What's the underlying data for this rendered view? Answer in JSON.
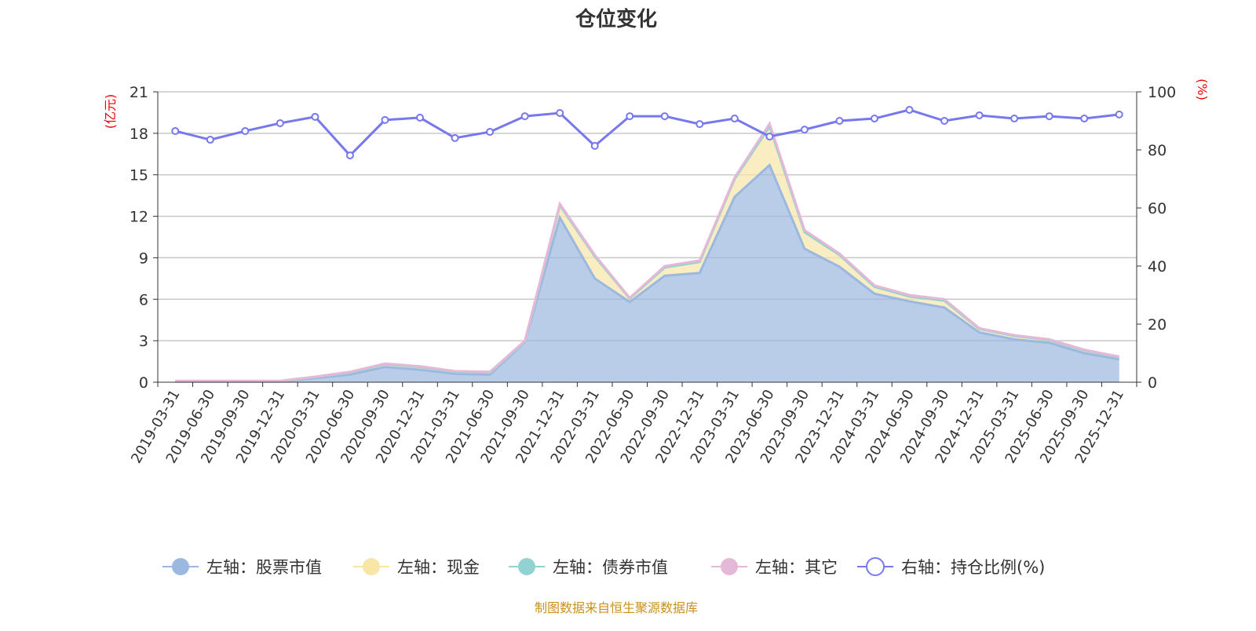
{
  "chart_data": {
    "type": "area",
    "title": "仓位变化",
    "left_axis_label": "(亿元)",
    "right_axis_label": "(%)",
    "left_ylim": [
      0,
      21
    ],
    "left_ticks": [
      0,
      3,
      6,
      9,
      12,
      15,
      18,
      21
    ],
    "right_ylim": [
      0,
      100
    ],
    "right_ticks": [
      0,
      20,
      40,
      60,
      80,
      100
    ],
    "grid": true,
    "legend_position": "bottom",
    "categories": [
      "2019-03-31",
      "2019-06-30",
      "2019-09-30",
      "2019-12-31",
      "2020-03-31",
      "2020-06-30",
      "2020-09-30",
      "2020-12-31",
      "2021-03-31",
      "2021-06-30",
      "2021-09-30",
      "2021-12-31",
      "2022-03-31",
      "2022-06-30",
      "2022-09-30",
      "2022-12-31",
      "2023-03-31",
      "2023-06-30",
      "2023-09-30",
      "2023-12-31",
      "2024-03-31",
      "2024-06-30",
      "2024-09-30",
      "2024-12-31",
      "2025-03-31",
      "2025-06-30",
      "2025-09-30",
      "2025-12-31"
    ],
    "series": [
      {
        "name": "左轴：股票市值",
        "axis": "left",
        "stack": true,
        "color": "#9bb8e0",
        "values": [
          0.05,
          0.05,
          0.05,
          0.05,
          0.3,
          0.55,
          1.1,
          0.9,
          0.6,
          0.55,
          2.9,
          11.9,
          7.5,
          5.8,
          7.7,
          7.9,
          13.4,
          15.7,
          9.65,
          8.35,
          6.4,
          5.85,
          5.4,
          3.6,
          3.1,
          2.85,
          2.1,
          1.65
        ]
      },
      {
        "name": "左轴：现金",
        "axis": "left",
        "stack": true,
        "color": "#f7e6a6",
        "values": [
          0.03,
          0.03,
          0.03,
          0.03,
          0.08,
          0.15,
          0.2,
          0.2,
          0.15,
          0.15,
          0.05,
          0.9,
          1.6,
          0.25,
          0.6,
          0.8,
          1.3,
          2.8,
          1.2,
          0.85,
          0.5,
          0.35,
          0.5,
          0.25,
          0.25,
          0.2,
          0.2,
          0.15
        ]
      },
      {
        "name": "左轴：债券市值",
        "axis": "left",
        "stack": true,
        "color": "#93d2d2",
        "values": [
          0,
          0,
          0,
          0,
          0,
          0,
          0,
          0,
          0,
          0,
          0,
          0,
          0,
          0,
          0,
          0,
          0,
          0,
          0,
          0,
          0,
          0,
          0,
          0,
          0,
          0,
          0,
          0
        ]
      },
      {
        "name": "左轴：其它",
        "axis": "left",
        "stack": true,
        "color": "#e6b8d8",
        "values": [
          0.02,
          0.02,
          0.02,
          0.02,
          0.02,
          0.05,
          0.05,
          0.05,
          0.05,
          0.05,
          0.05,
          0.1,
          0.1,
          0.05,
          0.1,
          0.1,
          0.1,
          0.2,
          0.15,
          0.1,
          0.1,
          0.1,
          0.1,
          0.05,
          0.05,
          0.05,
          0.05,
          0.05
        ]
      },
      {
        "name": "右轴：持仓比例(%)",
        "axis": "right",
        "stack": false,
        "color": "#7777ee",
        "values": [
          86.5,
          83.5,
          86.5,
          89.2,
          91.4,
          78.1,
          90.3,
          91.1,
          84.1,
          86.2,
          91.6,
          92.7,
          81.4,
          91.6,
          91.6,
          88.9,
          90.8,
          84.6,
          87.0,
          90.0,
          90.8,
          93.8,
          90.0,
          91.9,
          90.8,
          91.6,
          90.8,
          92.2
        ]
      }
    ],
    "source_note": "制图数据来自恒生聚源数据库"
  }
}
